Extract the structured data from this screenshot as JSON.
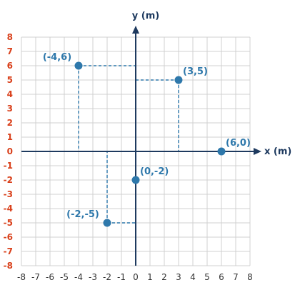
{
  "chart_data": {
    "type": "scatter",
    "title": "",
    "xlabel": "x (m)",
    "ylabel": "y (m)",
    "xlim": [
      -8,
      8
    ],
    "ylim": [
      -8,
      8
    ],
    "grid": true,
    "guide_lines": "dashed",
    "xticks": [
      -8,
      -7,
      -6,
      -5,
      -4,
      -3,
      -2,
      -1,
      0,
      1,
      2,
      3,
      4,
      5,
      6,
      7,
      8
    ],
    "yticks": [
      8,
      7,
      6,
      5,
      4,
      3,
      2,
      1,
      0,
      -1,
      -2,
      -3,
      -4,
      -5,
      -6,
      -7,
      -8
    ],
    "points": [
      {
        "x": -4,
        "y": 6,
        "label": "(-4,6)"
      },
      {
        "x": 3,
        "y": 5,
        "label": "(3,5)"
      },
      {
        "x": 6,
        "y": 0,
        "label": "(6,0)"
      },
      {
        "x": 0,
        "y": -2,
        "label": "(0,-2)"
      },
      {
        "x": -2,
        "y": -5,
        "label": "(-2,-5)"
      }
    ]
  },
  "colors": {
    "axis": "#1e3a5f",
    "grid": "#d0d0d0",
    "point": "#2e78ab",
    "dash": "#2e78ab",
    "y_tick": "#d9401b",
    "x_tick": "#333333",
    "axis_title": "#1e3a5f",
    "point_label": "#2e78ab"
  }
}
